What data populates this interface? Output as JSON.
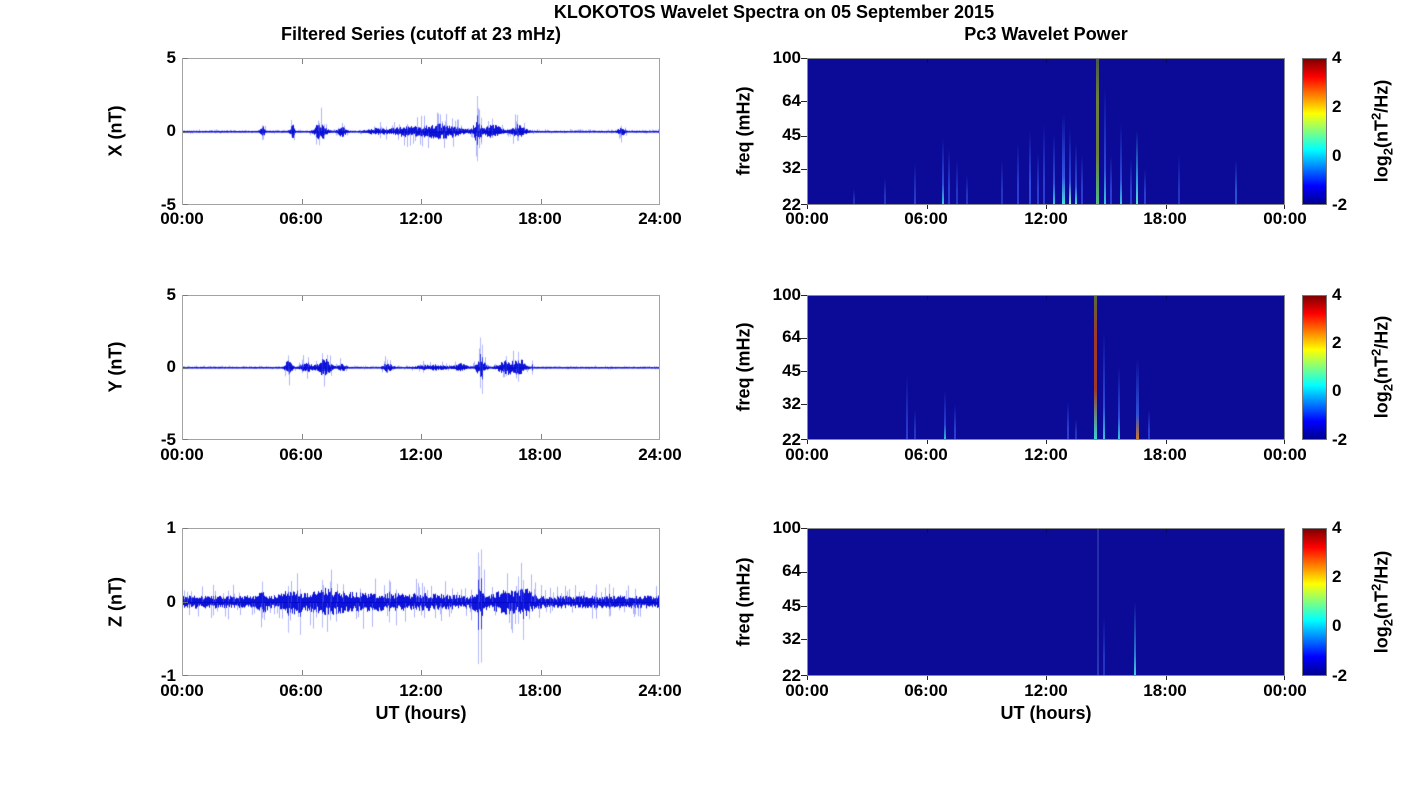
{
  "figure": {
    "title": "KLOKOTOS Wavelet Spectra on 05 September 2015",
    "left_title": "Filtered Series (cutoff at 23 mHz)",
    "right_title": "Pc3 Wavelet Power",
    "xlabel": "UT (hours)"
  },
  "colorbar_label_parts": {
    "l1": "log",
    "sub": "2",
    "l2": "(nT",
    "sup": "2",
    "l3": "/Hz)"
  },
  "chart_data": [
    {
      "type": "line",
      "id": "filtered-series-x",
      "title": "Filtered Series (cutoff at 23 mHz)",
      "ylabel": "X (nT)",
      "xlabel": "UT (hours)",
      "xlim_hours": [
        0,
        24
      ],
      "xticks": [
        "00:00",
        "06:00",
        "12:00",
        "18:00",
        "24:00"
      ],
      "ylim": [
        -5,
        5
      ],
      "yticks": [
        5,
        0,
        -5
      ],
      "line_color": "#0006d6",
      "series_summary": {
        "baseline_nT": 0.05,
        "bursts": [
          {
            "t": 4.0,
            "w": 0.12,
            "a": 0.35
          },
          {
            "t": 5.5,
            "w": 0.12,
            "a": 0.4
          },
          {
            "t": 6.9,
            "w": 0.3,
            "a": 0.5
          },
          {
            "t": 8.0,
            "w": 0.2,
            "a": 0.3
          },
          {
            "t": 9.7,
            "w": 0.5,
            "a": 0.15
          },
          {
            "t": 11.2,
            "w": 0.9,
            "a": 0.25
          },
          {
            "t": 13.0,
            "w": 1.1,
            "a": 0.4
          },
          {
            "t": 14.8,
            "w": 0.2,
            "a": 0.6
          },
          {
            "t": 15.6,
            "w": 0.5,
            "a": 0.35
          },
          {
            "t": 16.9,
            "w": 0.35,
            "a": 0.4
          },
          {
            "t": 22.1,
            "w": 0.2,
            "a": 0.2
          }
        ],
        "spikes": [
          {
            "t": 4.0,
            "u": 0.45,
            "d": 0.6
          },
          {
            "t": 5.45,
            "u": 0.8,
            "d": 0.35
          },
          {
            "t": 6.85,
            "u": 0.6,
            "d": 0.95
          },
          {
            "t": 7.1,
            "u": 0.5,
            "d": 0.5
          },
          {
            "t": 14.82,
            "u": 2.45,
            "d": 2.05
          },
          {
            "t": 15.05,
            "u": 0.95,
            "d": 0.9
          },
          {
            "t": 15.6,
            "u": 0.9,
            "d": 0.45
          },
          {
            "t": 16.85,
            "u": 1.15,
            "d": 0.65
          },
          {
            "t": 22.1,
            "u": 0.4,
            "d": 0.3
          }
        ]
      }
    },
    {
      "type": "line",
      "id": "filtered-series-y",
      "ylabel": "Y (nT)",
      "xlabel": "UT (hours)",
      "xlim_hours": [
        0,
        24
      ],
      "xticks": [
        "00:00",
        "06:00",
        "12:00",
        "18:00",
        "24:00"
      ],
      "ylim": [
        -5,
        5
      ],
      "yticks": [
        5,
        0,
        -5
      ],
      "line_color": "#0006d6",
      "series_summary": {
        "baseline_nT": 0.045,
        "bursts": [
          {
            "t": 5.3,
            "w": 0.2,
            "a": 0.4
          },
          {
            "t": 6.2,
            "w": 0.3,
            "a": 0.3
          },
          {
            "t": 7.1,
            "w": 0.35,
            "a": 0.5
          },
          {
            "t": 8.0,
            "w": 0.2,
            "a": 0.2
          },
          {
            "t": 10.3,
            "w": 0.25,
            "a": 0.25
          },
          {
            "t": 12.6,
            "w": 0.8,
            "a": 0.15
          },
          {
            "t": 14.0,
            "w": 0.3,
            "a": 0.2
          },
          {
            "t": 15.0,
            "w": 0.25,
            "a": 0.5
          },
          {
            "t": 16.3,
            "w": 0.5,
            "a": 0.4
          },
          {
            "t": 17.0,
            "w": 0.3,
            "a": 0.4
          }
        ],
        "spikes": [
          {
            "t": 5.3,
            "u": 0.85,
            "d": 0.5
          },
          {
            "t": 6.0,
            "u": 0.55,
            "d": 0.4
          },
          {
            "t": 7.0,
            "u": 1.0,
            "d": 0.55
          },
          {
            "t": 7.25,
            "u": 0.9,
            "d": 0.45
          },
          {
            "t": 10.3,
            "u": 0.55,
            "d": 0.35
          },
          {
            "t": 14.95,
            "u": 2.1,
            "d": 1.45
          },
          {
            "t": 15.1,
            "u": 1.6,
            "d": 1.85
          },
          {
            "t": 16.3,
            "u": 0.8,
            "d": 0.6
          },
          {
            "t": 16.9,
            "u": 1.1,
            "d": 1.0
          },
          {
            "t": 17.6,
            "u": 0.5,
            "d": 0.5
          }
        ]
      }
    },
    {
      "type": "line",
      "id": "filtered-series-z",
      "ylabel": "Z (nT)",
      "xlabel": "UT (hours)",
      "xlim_hours": [
        0,
        24
      ],
      "xticks": [
        "00:00",
        "06:00",
        "12:00",
        "18:00",
        "24:00"
      ],
      "ylim": [
        -1,
        1
      ],
      "yticks": [
        1,
        0,
        -1
      ],
      "line_color": "#0006d6",
      "series_summary": {
        "baseline_nT": 0.075,
        "bursts": [
          {
            "t": 4.0,
            "w": 0.25,
            "a": 0.06
          },
          {
            "t": 5.5,
            "w": 0.5,
            "a": 0.09
          },
          {
            "t": 7.2,
            "w": 0.8,
            "a": 0.08
          },
          {
            "t": 9.0,
            "w": 1.5,
            "a": 0.04
          },
          {
            "t": 12.0,
            "w": 1.5,
            "a": 0.03
          },
          {
            "t": 15.0,
            "w": 0.3,
            "a": 0.1
          },
          {
            "t": 16.3,
            "w": 0.6,
            "a": 0.08
          },
          {
            "t": 17.2,
            "w": 0.4,
            "a": 0.09
          }
        ],
        "spikes": [
          {
            "t": 4.0,
            "u": 0.28,
            "d": 0.22
          },
          {
            "t": 5.3,
            "u": 0.22,
            "d": 0.42
          },
          {
            "t": 5.9,
            "u": 0.18,
            "d": 0.45
          },
          {
            "t": 7.0,
            "u": 0.3,
            "d": 0.35
          },
          {
            "t": 7.4,
            "u": 0.28,
            "d": 0.25
          },
          {
            "t": 10.4,
            "u": 0.3,
            "d": 0.28
          },
          {
            "t": 14.85,
            "u": 0.68,
            "d": 0.85
          },
          {
            "t": 15.05,
            "u": 0.72,
            "d": 0.83
          },
          {
            "t": 16.9,
            "u": 0.35,
            "d": 0.3
          },
          {
            "t": 17.15,
            "u": 0.3,
            "d": 0.52
          },
          {
            "t": 21.5,
            "u": 0.25,
            "d": 0.2
          }
        ]
      }
    },
    {
      "type": "heatmap",
      "id": "wavelet-power-x",
      "title": "Pc3 Wavelet Power",
      "ylabel": "freq (mHz)",
      "xlabel": "UT (hours)",
      "xticks": [
        "00:00",
        "06:00",
        "12:00",
        "18:00",
        "00:00"
      ],
      "yscale": "log",
      "yticks_mHz": [
        100,
        64,
        45,
        32,
        22
      ],
      "colorbar": {
        "label": "log2(nT^2/Hz)",
        "ticks": [
          4,
          2,
          0,
          -2
        ],
        "colormap": "jet"
      },
      "background_color": "#0b0b97",
      "streaks": [
        {
          "t": 2.3,
          "h": 0.1,
          "w": 2,
          "c1": "#2030b8"
        },
        {
          "t": 3.9,
          "h": 0.18,
          "w": 2,
          "c1": "#2334c4"
        },
        {
          "t": 5.4,
          "h": 0.28,
          "w": 2,
          "c1": "#2a3cd4",
          "c2": "#2334c4"
        },
        {
          "t": 6.8,
          "h": 0.45,
          "w": 2,
          "c1": "#35c8dc",
          "c2": "#2f4adc"
        },
        {
          "t": 7.1,
          "h": 0.38,
          "w": 2,
          "c1": "#2a3cd4"
        },
        {
          "t": 7.5,
          "h": 0.3,
          "w": 2,
          "c1": "#2334c4"
        },
        {
          "t": 8.0,
          "h": 0.2,
          "w": 2,
          "c1": "#2334c4"
        },
        {
          "t": 9.8,
          "h": 0.3,
          "w": 2,
          "c1": "#2334c4"
        },
        {
          "t": 10.6,
          "h": 0.42,
          "w": 2,
          "c1": "#2a3cd4"
        },
        {
          "t": 11.2,
          "h": 0.5,
          "w": 2,
          "c1": "#2f4adc"
        },
        {
          "t": 11.6,
          "h": 0.35,
          "w": 2,
          "c1": "#2a3cd4"
        },
        {
          "t": 11.9,
          "h": 0.55,
          "w": 2,
          "c1": "#2a3cd4"
        },
        {
          "t": 12.4,
          "h": 0.48,
          "w": 2,
          "c1": "#35c8dc",
          "c2": "#2f4adc"
        },
        {
          "t": 12.9,
          "h": 0.62,
          "w": 3,
          "c1": "#45e0e0",
          "c2": "#3555e4"
        },
        {
          "t": 13.2,
          "h": 0.52,
          "w": 2,
          "c1": "#8fe8d0",
          "c2": "#2f4adc"
        },
        {
          "t": 13.5,
          "h": 0.42,
          "w": 2,
          "c1": "#45e0e0",
          "c2": "#2f4adc"
        },
        {
          "t": 13.8,
          "h": 0.34,
          "w": 2,
          "c1": "#2a3cd4"
        },
        {
          "t": 14.6,
          "h": 1.0,
          "w": 3,
          "c1": "#50b888",
          "c2": "#6e7f3a",
          "c3": "#4a5a50",
          "full": true
        },
        {
          "t": 14.95,
          "h": 0.8,
          "w": 2,
          "c1": "#38c8e0",
          "c2": "#2f4adc"
        },
        {
          "t": 15.3,
          "h": 0.34,
          "w": 2,
          "c1": "#2a3cd4"
        },
        {
          "t": 15.8,
          "h": 0.55,
          "w": 2,
          "c1": "#38c8e0",
          "c2": "#2f4adc"
        },
        {
          "t": 16.3,
          "h": 0.3,
          "w": 2,
          "c1": "#2a3cd4"
        },
        {
          "t": 16.6,
          "h": 0.5,
          "w": 2,
          "c1": "#58e0d0",
          "c2": "#30a0e0"
        },
        {
          "t": 17.0,
          "h": 0.24,
          "w": 2,
          "c1": "#2a3cd4"
        },
        {
          "t": 18.7,
          "h": 0.34,
          "w": 2,
          "c1": "#2334c4"
        },
        {
          "t": 21.6,
          "h": 0.3,
          "w": 2,
          "c1": "#2a50d0"
        }
      ]
    },
    {
      "type": "heatmap",
      "id": "wavelet-power-y",
      "ylabel": "freq (mHz)",
      "xlabel": "UT (hours)",
      "xticks": [
        "00:00",
        "06:00",
        "12:00",
        "18:00",
        "00:00"
      ],
      "yscale": "log",
      "yticks_mHz": [
        100,
        64,
        45,
        32,
        22
      ],
      "colorbar": {
        "label": "log2(nT^2/Hz)",
        "ticks": [
          4,
          2,
          0,
          -2
        ],
        "colormap": "jet"
      },
      "background_color": "#0b0b97",
      "streaks": [
        {
          "t": 5.0,
          "h": 0.45,
          "w": 2,
          "c1": "#2a3cd4",
          "c2": "#2334c4"
        },
        {
          "t": 5.4,
          "h": 0.2,
          "w": 2,
          "c1": "#2334c4"
        },
        {
          "t": 6.9,
          "h": 0.34,
          "w": 2,
          "c1": "#30b8d8",
          "c2": "#2a3cd4"
        },
        {
          "t": 7.4,
          "h": 0.24,
          "w": 2,
          "c1": "#2a3cd4"
        },
        {
          "t": 13.1,
          "h": 0.26,
          "w": 2,
          "c1": "#2a3cd4"
        },
        {
          "t": 13.5,
          "h": 0.14,
          "w": 2,
          "c1": "#2334c4"
        },
        {
          "t": 14.5,
          "h": 1.0,
          "w": 3,
          "c1": "#38d0d8",
          "c2": "#a03828",
          "c3": "#5a6a40",
          "full": true
        },
        {
          "t": 14.9,
          "h": 0.75,
          "w": 2,
          "c1": "#38c0e0",
          "c2": "#2f4adc"
        },
        {
          "t": 15.7,
          "h": 0.5,
          "w": 2,
          "c1": "#38c0e0",
          "c2": "#2f4adc"
        },
        {
          "t": 16.6,
          "h": 0.56,
          "w": 3,
          "c1": "#c87830",
          "c2": "#3050d8"
        },
        {
          "t": 17.2,
          "h": 0.2,
          "w": 2,
          "c1": "#2a3cd4"
        }
      ]
    },
    {
      "type": "heatmap",
      "id": "wavelet-power-z",
      "ylabel": "freq (mHz)",
      "xlabel": "UT (hours)",
      "xticks": [
        "00:00",
        "06:00",
        "12:00",
        "18:00",
        "00:00"
      ],
      "yscale": "log",
      "yticks_mHz": [
        100,
        64,
        45,
        32,
        22
      ],
      "colorbar": {
        "label": "log2(nT^2/Hz)",
        "ticks": [
          4,
          2,
          0,
          -2
        ],
        "colormap": "jet"
      },
      "background_color": "#0b0b97",
      "streaks": [
        {
          "t": 14.6,
          "h": 1.0,
          "w": 2,
          "c1": "#2a38b8",
          "c2": "#232ea8",
          "full": true
        },
        {
          "t": 14.9,
          "h": 0.4,
          "w": 2,
          "c1": "#2334c4"
        },
        {
          "t": 16.5,
          "h": 0.5,
          "w": 2,
          "c1": "#45d0e0",
          "c2": "#2878d0"
        }
      ]
    }
  ]
}
